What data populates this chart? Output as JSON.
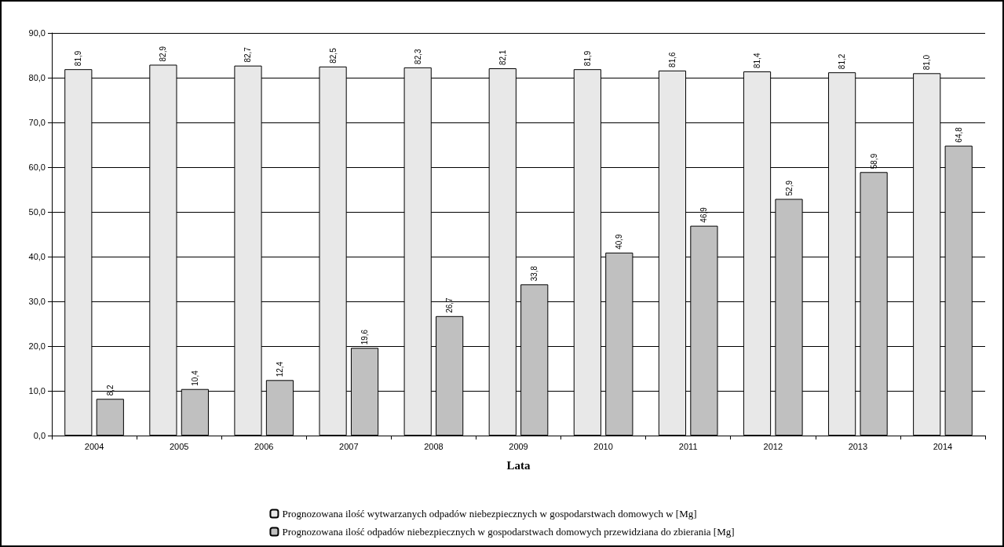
{
  "chart_data": {
    "type": "bar",
    "xlabel": "Lata",
    "categories": [
      "2004",
      "2005",
      "2006",
      "2007",
      "2008",
      "2009",
      "2010",
      "2011",
      "2012",
      "2013",
      "2014"
    ],
    "series": [
      {
        "name": "Prognozowana ilość wytwarzanych odpadów niebezpiecznych w gospodarstwach domowych w [Mg]",
        "color": "#e8e8e8",
        "values": [
          81.9,
          82.9,
          82.7,
          82.5,
          82.3,
          82.1,
          81.9,
          81.6,
          81.4,
          81.2,
          81.0
        ],
        "value_labels": [
          "81,9",
          "82,9",
          "82,7",
          "82,5",
          "82,3",
          "82,1",
          "81,9",
          "81,6",
          "81,4",
          "81,2",
          "81,0"
        ]
      },
      {
        "name": "Prognozowana ilość odpadów niebezpiecznych w gospodarstwach domowych przewidziana do zbierania [Mg]",
        "color": "#c0c0c0",
        "values": [
          8.2,
          10.4,
          12.4,
          19.6,
          26.7,
          33.8,
          40.9,
          46.9,
          52.9,
          58.9,
          64.8
        ],
        "value_labels": [
          "8,2",
          "10,4",
          "12,4",
          "19,6",
          "26,7",
          "33,8",
          "40,9",
          "46,9",
          "52,9",
          "58,9",
          "64,8"
        ]
      }
    ],
    "ylim": [
      0,
      90
    ],
    "yticks": [
      {
        "value": 0,
        "label": "0,0"
      },
      {
        "value": 10,
        "label": "10,0"
      },
      {
        "value": 20,
        "label": "20,0"
      },
      {
        "value": 30,
        "label": "30,0"
      },
      {
        "value": 40,
        "label": "40,0"
      },
      {
        "value": 50,
        "label": "50,0"
      },
      {
        "value": 60,
        "label": "60,0"
      },
      {
        "value": 70,
        "label": "70,0"
      },
      {
        "value": 80,
        "label": "80,0"
      },
      {
        "value": 90,
        "label": "90,0"
      }
    ],
    "grid": "y",
    "legend": "bottom"
  }
}
